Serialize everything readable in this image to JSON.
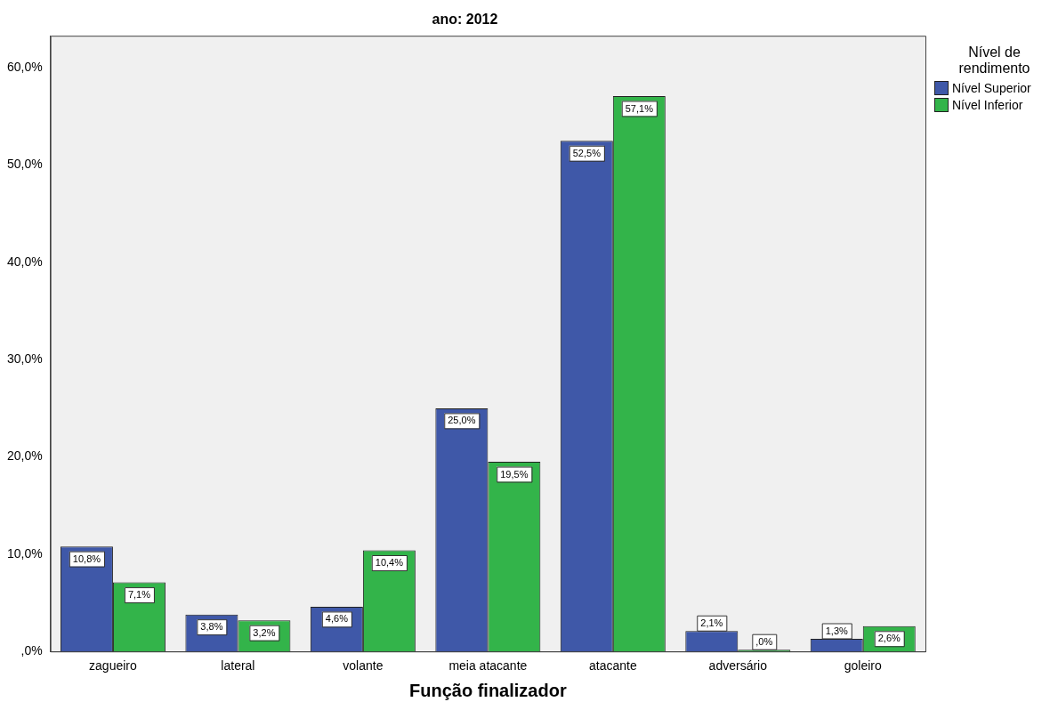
{
  "chart_data": {
    "type": "bar",
    "title": "ano: 2012",
    "xlabel": "Função finalizador",
    "legend_title": "Nível de rendimento",
    "legend": "right",
    "categories": [
      "zagueiro",
      "lateral",
      "volante",
      "meia atacante",
      "atacante",
      "adversário",
      "goleiro"
    ],
    "series": [
      {
        "name": "Nível Superior",
        "color": "#3f58a8",
        "values": [
          10.8,
          3.8,
          4.6,
          25.0,
          52.5,
          2.1,
          1.3
        ],
        "value_labels": [
          "10,8%",
          "3,8%",
          "4,6%",
          "25,0%",
          "52,5%",
          "2,1%",
          "1,3%"
        ]
      },
      {
        "name": "Nível Inferior",
        "color": "#33b44a",
        "values": [
          7.1,
          3.2,
          10.4,
          19.5,
          57.1,
          0,
          2.6
        ],
        "value_labels": [
          "7,1%",
          "3,2%",
          "10,4%",
          "19,5%",
          "57,1%",
          ",0%",
          "2,6%"
        ]
      }
    ],
    "ylim": [
      0,
      63.3
    ],
    "yticks": [
      {
        "value": 0,
        "label": ",0%"
      },
      {
        "value": 10,
        "label": "10,0%"
      },
      {
        "value": 20,
        "label": "20,0%"
      },
      {
        "value": 30,
        "label": "30,0%"
      },
      {
        "value": 40,
        "label": "40,0%"
      },
      {
        "value": 50,
        "label": "50,0%"
      },
      {
        "value": 60,
        "label": "60,0%"
      }
    ],
    "grid": false
  }
}
